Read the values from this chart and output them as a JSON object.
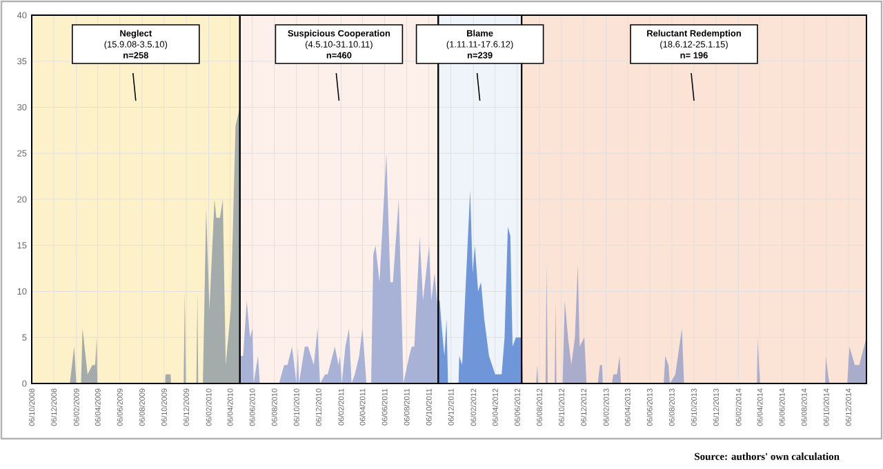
{
  "chart_data": {
    "type": "area",
    "xlim": [
      "2008-10-06",
      "2015-01-25"
    ],
    "ylim": [
      0,
      40
    ],
    "yticks": [
      0,
      5,
      10,
      15,
      20,
      25,
      30,
      35,
      40
    ],
    "xticks": [
      {
        "value": "2008-10-06",
        "label": "06/10/2008"
      },
      {
        "value": "2008-12-06",
        "label": "06/12/2008"
      },
      {
        "value": "2009-02-06",
        "label": "06/02/2009"
      },
      {
        "value": "2009-04-06",
        "label": "06/04/2009"
      },
      {
        "value": "2009-06-06",
        "label": "06/06/2009"
      },
      {
        "value": "2009-08-06",
        "label": "06/08/2009"
      },
      {
        "value": "2009-10-06",
        "label": "06/10/2009"
      },
      {
        "value": "2009-12-06",
        "label": "06/12/2009"
      },
      {
        "value": "2010-02-06",
        "label": "06/02/2010"
      },
      {
        "value": "2010-04-06",
        "label": "06/04/2010"
      },
      {
        "value": "2010-06-06",
        "label": "06/06/2010"
      },
      {
        "value": "2010-08-06",
        "label": "06/08/2010"
      },
      {
        "value": "2010-10-06",
        "label": "06/10/2010"
      },
      {
        "value": "2010-12-06",
        "label": "06/12/2010"
      },
      {
        "value": "2011-02-06",
        "label": "06/02/2011"
      },
      {
        "value": "2011-04-06",
        "label": "06/04/2011"
      },
      {
        "value": "2011-06-06",
        "label": "06/06/2011"
      },
      {
        "value": "2011-08-06",
        "label": "06/08/2011"
      },
      {
        "value": "2011-10-06",
        "label": "06/10/2011"
      },
      {
        "value": "2011-12-06",
        "label": "06/12/2011"
      },
      {
        "value": "2012-02-06",
        "label": "06/02/2012"
      },
      {
        "value": "2012-04-06",
        "label": "06/04/2012"
      },
      {
        "value": "2012-06-06",
        "label": "06/06/2012"
      },
      {
        "value": "2012-08-06",
        "label": "06/08/2012"
      },
      {
        "value": "2012-10-06",
        "label": "06/10/2012"
      },
      {
        "value": "2012-12-06",
        "label": "06/12/2012"
      },
      {
        "value": "2013-02-06",
        "label": "06/02/2013"
      },
      {
        "value": "2013-04-06",
        "label": "06/04/2013"
      },
      {
        "value": "2013-06-06",
        "label": "06/06/2013"
      },
      {
        "value": "2013-08-06",
        "label": "06/08/2013"
      },
      {
        "value": "2013-10-06",
        "label": "06/10/2013"
      },
      {
        "value": "2013-12-06",
        "label": "06/12/2013"
      },
      {
        "value": "2014-02-06",
        "label": "06/02/2014"
      },
      {
        "value": "2014-04-06",
        "label": "06/04/2014"
      },
      {
        "value": "2014-06-06",
        "label": "06/06/2014"
      },
      {
        "value": "2014-08-06",
        "label": "06/08/2014"
      },
      {
        "value": "2014-10-06",
        "label": "06/10/2014"
      },
      {
        "value": "2014-12-06",
        "label": "06/12/2014"
      }
    ],
    "grid": true,
    "series": [
      {
        "color": "#a4abab",
        "x": [
          "2008-10-06",
          "2009-01-19",
          "2009-01-31",
          "2009-02-06",
          "2009-02-19",
          "2009-02-23",
          "2009-03-09",
          "2009-03-22",
          "2009-03-30",
          "2009-04-03",
          "2009-04-05",
          "2009-10-09",
          "2009-10-10",
          "2009-10-24",
          "2009-10-25",
          "2009-11-29",
          "2009-12-02",
          "2009-12-05",
          "2010-01-03",
          "2010-01-06",
          "2010-01-08",
          "2010-01-21",
          "2010-01-30",
          "2010-02-08",
          "2010-02-22",
          "2010-02-27",
          "2010-03-09",
          "2010-03-17",
          "2010-03-25",
          "2010-04-08",
          "2010-04-21",
          "2010-05-03"
        ],
        "values": [
          0,
          0,
          4,
          0,
          0,
          6,
          1,
          2,
          2,
          5,
          0,
          0,
          1,
          1,
          0,
          0,
          10,
          0,
          0,
          10,
          0,
          0,
          19,
          8,
          20,
          18,
          18,
          20,
          2,
          8,
          28,
          30
        ]
      },
      {
        "color": "#a8b2d6",
        "x": [
          "2010-05-04",
          "2010-05-12",
          "2010-05-22",
          "2010-05-31",
          "2010-06-07",
          "2010-06-10",
          "2010-06-22",
          "2010-06-27",
          "2010-08-19",
          "2010-09-02",
          "2010-09-11",
          "2010-09-24",
          "2010-10-06",
          "2010-10-10",
          "2010-10-13",
          "2010-10-29",
          "2010-11-07",
          "2010-11-23",
          "2010-12-03",
          "2010-12-10",
          "2010-12-24",
          "2010-12-31",
          "2011-01-20",
          "2011-01-30",
          "2011-02-03",
          "2011-02-08",
          "2011-02-18",
          "2011-02-28",
          "2011-03-07",
          "2011-03-16",
          "2011-03-28",
          "2011-04-06",
          "2011-04-17",
          "2011-04-30",
          "2011-05-06",
          "2011-05-12",
          "2011-05-23",
          "2011-06-11",
          "2011-06-22",
          "2011-06-29",
          "2011-07-15",
          "2011-07-28",
          "2011-08-13",
          "2011-08-20",
          "2011-08-27",
          "2011-09-11",
          "2011-09-20",
          "2011-10-07",
          "2011-10-13",
          "2011-10-22",
          "2011-10-31"
        ],
        "values": [
          3,
          3,
          9,
          5,
          6,
          0,
          3,
          0,
          0,
          2,
          2,
          4,
          0,
          4,
          0,
          4,
          4,
          2,
          6,
          0,
          1,
          1,
          4,
          2,
          3,
          0,
          4,
          6,
          0,
          1,
          3,
          6,
          0,
          0,
          14,
          15,
          11,
          25,
          11,
          11,
          20,
          0,
          3,
          4,
          4,
          16,
          9,
          15,
          9,
          12,
          8
        ]
      },
      {
        "color": "#6f96d8",
        "x": [
          "2011-11-01",
          "2011-11-05",
          "2011-11-11",
          "2011-11-18",
          "2011-11-24",
          "2011-11-28",
          "2011-12-27",
          "2011-12-29",
          "2012-01-06",
          "2012-01-15",
          "2012-01-28",
          "2012-02-04",
          "2012-02-10",
          "2012-02-19",
          "2012-02-27",
          "2012-03-07",
          "2012-03-20",
          "2012-04-06",
          "2012-04-24",
          "2012-05-02",
          "2012-05-11",
          "2012-05-18",
          "2012-05-24",
          "2012-06-02",
          "2012-06-17"
        ],
        "values": [
          9,
          9,
          6,
          3,
          7,
          0,
          0,
          3,
          2,
          10,
          21,
          12,
          15,
          10,
          11,
          7,
          3,
          1,
          1,
          5,
          17,
          16,
          4,
          5,
          5
        ]
      },
      {
        "color": "#aaaccc",
        "x": [
          "2012-06-18",
          "2012-06-22",
          "2012-07-28",
          "2012-07-31",
          "2012-08-03",
          "2012-08-23",
          "2012-08-26",
          "2012-08-29",
          "2012-09-17",
          "2012-09-20",
          "2012-09-22",
          "2012-10-09",
          "2012-10-15",
          "2012-10-24",
          "2012-11-02",
          "2012-11-12",
          "2012-11-20",
          "2012-11-25",
          "2012-12-08",
          "2012-12-14",
          "2013-01-14",
          "2013-01-20",
          "2013-01-26",
          "2013-01-28",
          "2013-02-22",
          "2013-02-26",
          "2013-03-08",
          "2013-03-15",
          "2013-03-19",
          "2013-07-15",
          "2013-07-19",
          "2013-07-28",
          "2013-08-01",
          "2013-08-16",
          "2013-09-03",
          "2013-09-09",
          "2014-03-29",
          "2014-03-31",
          "2014-04-05",
          "2014-04-07",
          "2014-10-03",
          "2014-10-05",
          "2014-10-11",
          "2014-10-15",
          "2014-12-03",
          "2014-12-09",
          "2014-12-24",
          "2015-01-05",
          "2015-01-25"
        ],
        "values": [
          4,
          0,
          0,
          2,
          0,
          0,
          13,
          0,
          0,
          9,
          0,
          0,
          9,
          5,
          2,
          5,
          13,
          4,
          5,
          0,
          0,
          2,
          2,
          0,
          0,
          1,
          1,
          3,
          0,
          0,
          3,
          2,
          0,
          1,
          6,
          0,
          0,
          5,
          1,
          0,
          0,
          3,
          1,
          0,
          0,
          4,
          2,
          2,
          5
        ]
      }
    ],
    "bands": [
      {
        "axis": "x",
        "from": "2008-10-06",
        "to": "2010-05-03",
        "label": "Neglect",
        "color": "#fdf1c9"
      },
      {
        "axis": "x",
        "from": "2010-05-03",
        "to": "2011-11-01",
        "label": "Suspicious Cooperation",
        "color": "#fdf0ea"
      },
      {
        "axis": "x",
        "from": "2011-11-01",
        "to": "2012-06-18",
        "label": "Blame",
        "color": "#eff4fb"
      },
      {
        "axis": "x",
        "from": "2012-06-18",
        "to": "2015-01-25",
        "label": "Reluctant Redemption",
        "color": "#fbe4d6"
      }
    ],
    "annotations": [
      "(15.9.08-3.5.10)",
      "n=258",
      "(4.5.10-31.10.11)",
      "n=460",
      "(1.11.11-17.6.12)",
      "n=239",
      "(18.6.12-25.1.15)",
      "n= 196",
      "Source: authors' own calculation"
    ]
  }
}
